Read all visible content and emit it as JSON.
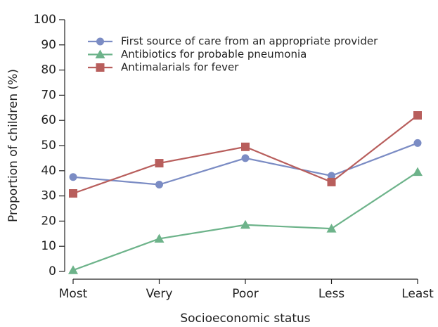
{
  "chart_data": {
    "type": "line",
    "x_label": "Socioeconomic status",
    "y_label": "Proportion of children (%)",
    "categories": [
      "Most",
      "Very",
      "Poor",
      "Less",
      "Least"
    ],
    "series": [
      {
        "name": "First source of care from an appropriate provider",
        "color": "#7b8cc4",
        "marker": "circle",
        "values": [
          37.5,
          34.5,
          45,
          38,
          51
        ]
      },
      {
        "name": "Antibiotics for probable pneumonia",
        "color": "#6db38a",
        "marker": "triangle",
        "values": [
          0.5,
          13,
          18.5,
          17,
          39.5
        ]
      },
      {
        "name": "Antimalarials for fever",
        "color": "#b85e5c",
        "marker": "square",
        "values": [
          31,
          43,
          49.5,
          35.5,
          62
        ]
      }
    ],
    "ylim": [
      0,
      100
    ],
    "yticks": [
      0,
      10,
      20,
      30,
      40,
      50,
      60,
      70,
      80,
      90,
      100
    ],
    "legend": "upper left",
    "grid": false
  }
}
